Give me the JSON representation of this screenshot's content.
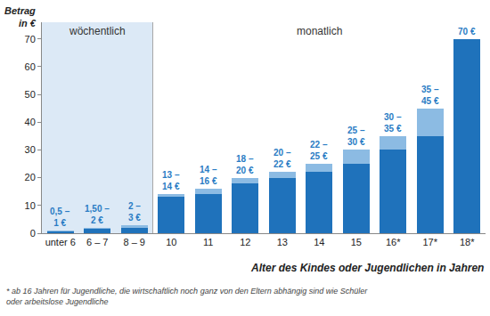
{
  "chart_data": {
    "type": "bar",
    "stacked": true,
    "ylabel": [
      "Betrag",
      "in €"
    ],
    "xlabel": "Alter des Kindes oder Jugendlichen in Jahren",
    "footnote": [
      "* ab 16 Jahren für Jugendliche, die wirtschaftlich noch ganz von den Eltern abhängig sind wie Schüler",
      "oder arbeitslose Jugendliche"
    ],
    "regions": [
      {
        "label": "wöchentlich",
        "from": 0,
        "to": 2,
        "color": "#dce9f6"
      },
      {
        "label": "monatlich",
        "from": 3,
        "to": 11,
        "color": "#ffffff"
      }
    ],
    "categories": [
      "unter 6",
      "6 – 7",
      "8 – 9",
      "10",
      "11",
      "12",
      "13",
      "14",
      "15",
      "16*",
      "17*",
      "18*"
    ],
    "series": [
      {
        "color": "#1f72bb",
        "values": [
          0.5,
          1.5,
          2,
          13,
          14,
          18,
          20,
          22,
          25,
          30,
          35,
          70
        ]
      },
      {
        "color": "#8cbbe3",
        "values": [
          0.5,
          0.5,
          1,
          1,
          2,
          2,
          2,
          3,
          5,
          5,
          10,
          0
        ]
      }
    ],
    "bar_labels": [
      [
        "0,5 –",
        "1 €"
      ],
      [
        "1,50 –",
        "2 €"
      ],
      [
        "2 –",
        "3 €"
      ],
      [
        "13 –",
        "14 €"
      ],
      [
        "14 –",
        "16 €"
      ],
      [
        "18 –",
        "20 €"
      ],
      [
        "20 –",
        "22 €"
      ],
      [
        "22 –",
        "25 €"
      ],
      [
        "25 –",
        "30 €"
      ],
      [
        "30 –",
        "35 €"
      ],
      [
        "35 –",
        "45 €"
      ],
      [
        "70 €"
      ]
    ],
    "ylim": [
      0,
      76
    ],
    "yticks": [
      0,
      10,
      20,
      30,
      40,
      50,
      60,
      70
    ],
    "grid": false
  }
}
